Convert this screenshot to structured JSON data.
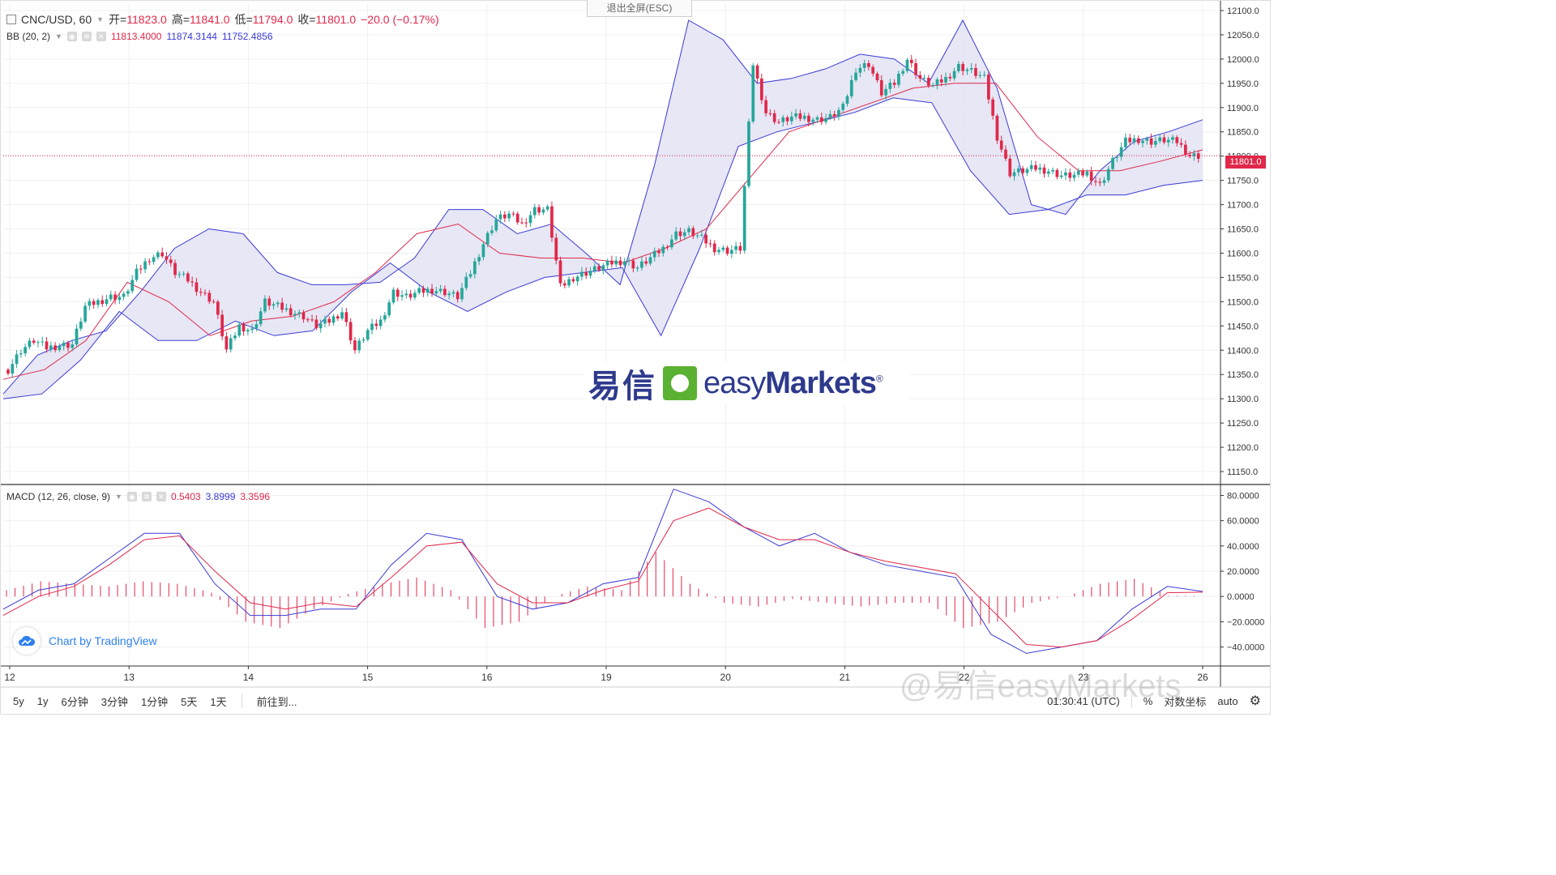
{
  "header": {
    "symbol": "CNC/USD, 60",
    "open_label": "开=",
    "open": "11823.0",
    "high_label": "高=",
    "high": "11841.0",
    "low_label": "低=",
    "low": "11794.0",
    "close_label": "收=",
    "close": "11801.0",
    "change": "−20.0 (−0.17%)"
  },
  "esc_button": "退出全屏(ESC)",
  "bb_legend": {
    "label": "BB (20, 2)",
    "mid": "11813.4000",
    "upper": "11874.3144",
    "lower": "11752.4856"
  },
  "macd_legend": {
    "label": "MACD (12, 26, close, 9)",
    "hist": "0.5403",
    "macd": "3.8999",
    "signal": "3.3596"
  },
  "last_price": "11801.0",
  "brand": {
    "cn": "易信",
    "en_light": "easy",
    "en_bold": "Markets",
    "reg": "®"
  },
  "tradingview": "Chart by TradingView",
  "watermark": "@易信easyMarkets",
  "toolbar": {
    "ranges": [
      "5y",
      "1y",
      "6分钟",
      "3分钟",
      "1分钟",
      "5天",
      "1天"
    ],
    "goto": "前往到...",
    "time": "01:30:41 (UTC)",
    "percent": "%",
    "log": "对数坐标",
    "auto": "auto"
  },
  "colors": {
    "up": "#26a69a",
    "down": "#e0284a",
    "bb_fill": "#e3e3f3",
    "bb_line": "#3a3ad6",
    "ma": "#e0284a",
    "macd": "#3a3ad6",
    "signal": "#e0284a"
  },
  "chart_data": [
    {
      "type": "candlestick",
      "title": "CNC/USD, 60",
      "x_tick_labels": [
        "12",
        "13",
        "14",
        "15",
        "16",
        "19",
        "20",
        "21",
        "22",
        "23",
        "26"
      ],
      "ylim": [
        11125,
        12115
      ],
      "y_tick_labels": [
        "12100.0",
        "12050.0",
        "12000.0",
        "11950.0",
        "11900.0",
        "11850.0",
        "11800.0",
        "11750.0",
        "11700.0",
        "11650.0",
        "11600.0",
        "11550.0",
        "11500.0",
        "11450.0",
        "11400.0",
        "11350.0",
        "11300.0",
        "11250.0",
        "11200.0",
        "11150.0"
      ],
      "close_path": [
        11360,
        11400,
        11420,
        11405,
        11410,
        11412,
        11490,
        11500,
        11510,
        11510,
        11560,
        11590,
        11600,
        11560,
        11545,
        11520,
        11500,
        11400,
        11450,
        11440,
        11500,
        11490,
        11480,
        11470,
        11450,
        11460,
        11480,
        11400,
        11440,
        11460,
        11520,
        11510,
        11520,
        11525,
        11520,
        11510,
        11560,
        11620,
        11670,
        11680,
        11660,
        11690,
        11690,
        11530,
        11550,
        11560,
        11570,
        11580,
        11585,
        11570,
        11590,
        11610,
        11640,
        11645,
        11630,
        11610,
        11605,
        11610,
        11990,
        11890,
        11870,
        11880,
        11880,
        11875,
        11880,
        11900,
        11980,
        11990,
        11930,
        11950,
        12000,
        11960,
        11945,
        11960,
        11985,
        11975,
        11960,
        11840,
        11765,
        11770,
        11775,
        11770,
        11760,
        11760,
        11765,
        11740,
        11790,
        11830,
        11835,
        11830,
        11833,
        11830,
        11801
      ],
      "bb_upper": [
        11310,
        11390,
        11420,
        11440,
        11520,
        11610,
        11650,
        11640,
        11560,
        11535,
        11535,
        11540,
        11590,
        11690,
        11690,
        11640,
        11660,
        11600,
        11535,
        11780,
        12080,
        12040,
        11950,
        11960,
        11980,
        12010,
        12000,
        11950,
        12080,
        11940,
        11700,
        11680,
        11770,
        11830,
        11850,
        11875
      ],
      "bb_lower": [
        11300,
        11310,
        11380,
        11480,
        11420,
        11420,
        11460,
        11430,
        11440,
        11520,
        11580,
        11520,
        11480,
        11520,
        11550,
        11560,
        11570,
        11430,
        11610,
        11820,
        11850,
        11870,
        11890,
        11920,
        11910,
        11770,
        11680,
        11690,
        11720,
        11720,
        11740,
        11750
      ],
      "bb_mid": [
        11340,
        11360,
        11420,
        11540,
        11500,
        11430,
        11460,
        11470,
        11500,
        11560,
        11640,
        11660,
        11600,
        11590,
        11590,
        11580,
        11610,
        11650,
        11750,
        11850,
        11880,
        11910,
        11940,
        11950,
        11950,
        11840,
        11770,
        11770,
        11790,
        11813
      ]
    },
    {
      "type": "line",
      "title": "MACD (12, 26, close, 9)",
      "ylim": [
        -55,
        88
      ],
      "y_tick_labels": [
        "80.0000",
        "60.0000",
        "40.0000",
        "20.0000",
        "0.0000",
        "−20.0000",
        "−40.0000"
      ],
      "series": [
        {
          "name": "MACD",
          "values": [
            -10,
            5,
            10,
            30,
            50,
            50,
            10,
            -15,
            -15,
            -10,
            -10,
            25,
            50,
            45,
            0,
            -10,
            -5,
            10,
            15,
            85,
            75,
            55,
            40,
            50,
            35,
            25,
            20,
            15,
            -30,
            -45,
            -40,
            -35,
            -10,
            8,
            4
          ]
        },
        {
          "name": "Signal",
          "values": [
            -15,
            0,
            8,
            25,
            45,
            48,
            20,
            -5,
            -10,
            -5,
            -8,
            15,
            40,
            43,
            10,
            -5,
            -5,
            5,
            12,
            60,
            70,
            55,
            45,
            45,
            35,
            28,
            23,
            18,
            -10,
            -38,
            -40,
            -35,
            -18,
            3,
            3.4
          ]
        },
        {
          "name": "Histogram",
          "values": [
            5,
            12,
            10,
            8,
            12,
            10,
            3,
            -20,
            -25,
            -10,
            2,
            10,
            15,
            5,
            -25,
            -20,
            0,
            8,
            5,
            35,
            10,
            -5,
            -8,
            -2,
            -5,
            -8,
            -5,
            -5,
            -25,
            -20,
            -5,
            0,
            10,
            14,
            0.54
          ]
        }
      ]
    }
  ]
}
